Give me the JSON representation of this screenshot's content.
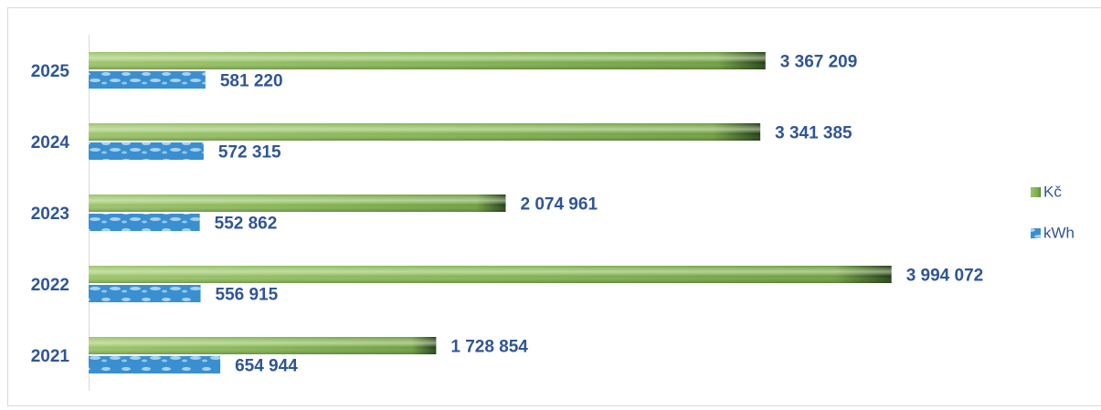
{
  "chart_data": {
    "type": "hbar",
    "categories": [
      "2025",
      "2024",
      "2023",
      "2022",
      "2021"
    ],
    "series": [
      {
        "name": "Kč",
        "color": "#7aa84a",
        "values": [
          3367209,
          3341385,
          2074961,
          3994072,
          1728854
        ],
        "value_labels": [
          "3 367 209",
          "3 341 385",
          "2 074 961",
          "3 994 072",
          "1 728 854"
        ]
      },
      {
        "name": "kWh",
        "color": "#3a8fd0",
        "values": [
          581220,
          572315,
          552862,
          556915,
          654944
        ],
        "value_labels": [
          "581 220",
          "572 315",
          "552 862",
          "556 915",
          "654 944"
        ]
      }
    ],
    "xlim": [
      0,
      5000000
    ],
    "legend": "right"
  }
}
